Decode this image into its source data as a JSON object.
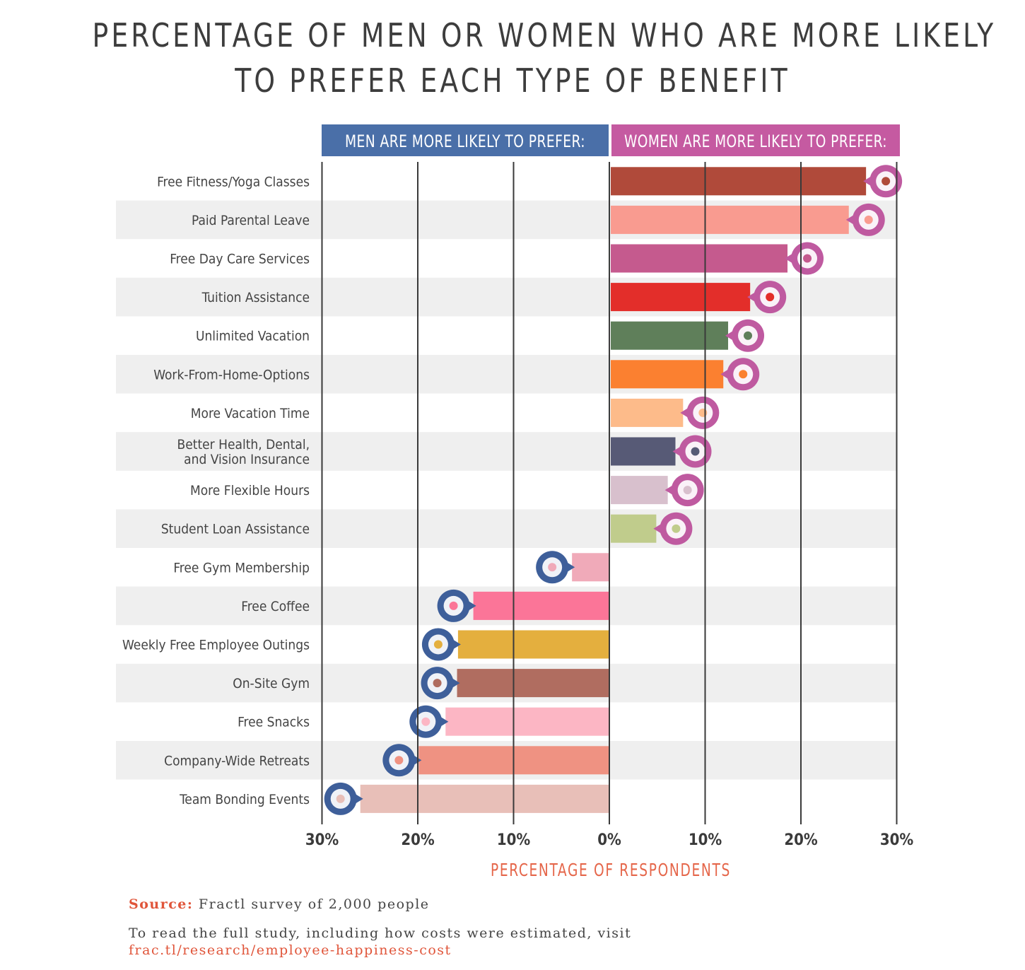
{
  "title_lines": [
    "PERCENTAGE OF MEN OR WOMEN WHO ARE MORE LIKELY",
    "TO PREFER EACH TYPE OF BENEFIT"
  ],
  "colors": {
    "men_header": "#4a6fa8",
    "women_header": "#c55aa1",
    "men_icon": "#3e5f9a",
    "women_icon": "#bf5aa0",
    "xlabel": "#e5664a",
    "grid": "#3a3a3a",
    "row_band": "#efefef"
  },
  "chart_data": {
    "type": "bar",
    "orientation": "horizontal-diverging",
    "title": "PERCENTAGE OF MEN OR WOMEN WHO ARE MORE LIKELY TO PREFER EACH TYPE OF BENEFIT",
    "xlabel": "PERCENTAGE OF RESPONDENTS",
    "ylabel": "",
    "xlim": [
      -30,
      30
    ],
    "ticks": [
      {
        "value": -30,
        "label": "30%"
      },
      {
        "value": -20,
        "label": "20%"
      },
      {
        "value": -10,
        "label": "10%"
      },
      {
        "value": 0,
        "label": "0%"
      },
      {
        "value": 10,
        "label": "10%"
      },
      {
        "value": 20,
        "label": "20%"
      },
      {
        "value": 30,
        "label": "30%"
      }
    ],
    "header_men": "MEN ARE MORE LIKELY TO PREFER:",
    "header_women": "WOMEN ARE MORE LIKELY TO PREFER:",
    "categories": [
      {
        "label": [
          "Free Fitness/Yoga Classes"
        ],
        "group": "women",
        "value": 26.8,
        "color": "#b04a3a",
        "icon": "yoga-icon"
      },
      {
        "label": [
          "Paid Parental Leave"
        ],
        "group": "women",
        "value": 25.0,
        "color": "#f99b90",
        "icon": "baby-icon"
      },
      {
        "label": [
          "Free Day Care Services"
        ],
        "group": "women",
        "value": 18.6,
        "color": "#c55a8e",
        "icon": "playground-icon"
      },
      {
        "label": [
          "Tuition Assistance"
        ],
        "group": "women",
        "value": 14.7,
        "color": "#e32e2a",
        "icon": "school-icon"
      },
      {
        "label": [
          "Unlimited Vacation"
        ],
        "group": "women",
        "value": 12.4,
        "color": "#5f7f5a",
        "icon": "airplane-icon"
      },
      {
        "label": [
          "Work-From-Home-Options"
        ],
        "group": "women",
        "value": 11.9,
        "color": "#fb8030",
        "icon": "home-icon"
      },
      {
        "label": [
          "More Vacation Time"
        ],
        "group": "women",
        "value": 7.7,
        "color": "#fdbb8a",
        "icon": "globe-icon"
      },
      {
        "label": [
          "Better Health, Dental,",
          "and Vision Insurance"
        ],
        "group": "women",
        "value": 6.9,
        "color": "#575a76",
        "icon": "shield-icon"
      },
      {
        "label": [
          "More Flexible Hours"
        ],
        "group": "women",
        "value": 6.1,
        "color": "#d8c0cd",
        "icon": "clock-icon"
      },
      {
        "label": [
          "Student Loan Assistance"
        ],
        "group": "women",
        "value": 4.9,
        "color": "#c0cc8c",
        "icon": "graduation-cap-icon"
      },
      {
        "label": [
          "Free Gym Membership"
        ],
        "group": "men",
        "value": 3.9,
        "color": "#f0aab9",
        "icon": "id-card-icon"
      },
      {
        "label": [
          "Free Coffee"
        ],
        "group": "men",
        "value": 14.2,
        "color": "#fb7598",
        "icon": "coffee-icon"
      },
      {
        "label": [
          "Weekly Free Employee Outings"
        ],
        "group": "men",
        "value": 15.8,
        "color": "#e4af3e",
        "icon": "paddle-icon"
      },
      {
        "label": [
          "On-Site Gym"
        ],
        "group": "men",
        "value": 15.9,
        "color": "#b06d60",
        "icon": "dumbbell-icon"
      },
      {
        "label": [
          "Free Snacks"
        ],
        "group": "men",
        "value": 17.1,
        "color": "#fcb6c4",
        "icon": "snack-icon"
      },
      {
        "label": [
          "Company-Wide Retreats"
        ],
        "group": "men",
        "value": 19.9,
        "color": "#ef9282",
        "icon": "van-icon"
      },
      {
        "label": [
          "Team Bonding Events"
        ],
        "group": "men",
        "value": 26.0,
        "color": "#e8bfb8",
        "icon": "team-icon"
      }
    ]
  },
  "footer": {
    "source_label": "Source:",
    "source_text": " Fractl survey of 2,000 people",
    "read_text": "To read the full study, including how costs were estimated, visit",
    "link": "frac.tl/research/employee-happiness-cost"
  }
}
